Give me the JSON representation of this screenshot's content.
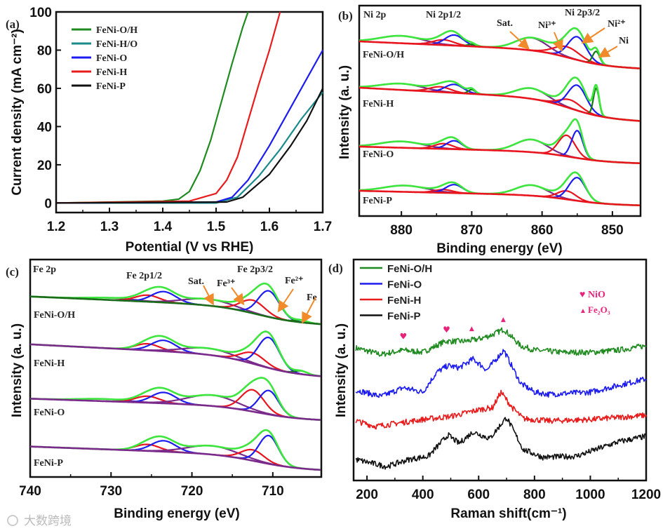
{
  "watermark": "大数跨境",
  "chart_data": [
    {
      "id": "a",
      "type": "line",
      "panel_label": "(a)",
      "xlabel": "Potential (V vs RHE)",
      "ylabel": "Current density (mA cm⁻²)",
      "xlim": [
        1.2,
        1.7
      ],
      "ylim": [
        -5,
        100
      ],
      "xticks": [
        1.2,
        1.3,
        1.4,
        1.5,
        1.6,
        1.7
      ],
      "yticks": [
        0,
        20,
        40,
        60,
        80,
        100
      ],
      "legend": "top-left",
      "series": [
        {
          "name": "FeNi-O/H",
          "color": "#1f8a1f",
          "x": [
            1.2,
            1.4,
            1.43,
            1.45,
            1.47,
            1.49,
            1.51,
            1.53,
            1.55,
            1.56
          ],
          "y": [
            0,
            1,
            2,
            6,
            17,
            33,
            53,
            73,
            92,
            100
          ]
        },
        {
          "name": "FeNi-H/O",
          "color": "#1a8a8a",
          "x": [
            1.2,
            1.5,
            1.54,
            1.58,
            1.62,
            1.66,
            1.7
          ],
          "y": [
            0,
            0,
            3,
            14,
            28,
            44,
            58
          ]
        },
        {
          "name": "FeNi-O",
          "color": "#1c1cf0",
          "x": [
            1.2,
            1.5,
            1.53,
            1.56,
            1.6,
            1.64,
            1.67,
            1.7
          ],
          "y": [
            0,
            0.5,
            3,
            12,
            30,
            50,
            65,
            80
          ]
        },
        {
          "name": "FeNi-H",
          "color": "#e81c1c",
          "x": [
            1.2,
            1.45,
            1.5,
            1.52,
            1.54,
            1.56,
            1.58,
            1.6,
            1.61,
            1.62
          ],
          "y": [
            0,
            1,
            5,
            12,
            24,
            43,
            62,
            80,
            90,
            100
          ]
        },
        {
          "name": "FeNi-P",
          "color": "#111111",
          "x": [
            1.2,
            1.52,
            1.55,
            1.6,
            1.64,
            1.67,
            1.7
          ],
          "y": [
            0,
            0.5,
            3,
            15,
            30,
            43,
            60
          ]
        }
      ]
    },
    {
      "id": "b",
      "type": "line",
      "panel_label": "(b)",
      "title": "Ni 2p",
      "xlabel": "Binding energy (eV)",
      "ylabel": "Intensity (a. u.)",
      "xlim": [
        886,
        846
      ],
      "ylim": [
        0,
        100
      ],
      "xticks": [
        880,
        870,
        860,
        850
      ],
      "step_center": 856,
      "annotations": [
        "Ni 2p1/2",
        "Sat.",
        "Ni³⁺",
        "Ni 2p3/2",
        "Ni²⁺",
        "Ni"
      ],
      "colors": {
        "baseline": "#e8141e",
        "envelope": "#3ce63c",
        "satellite": "#7a2a8a",
        "red": "#e8141e",
        "blue": "#1c1cf0",
        "metal": "#137a13"
      },
      "spectra": [
        {
          "name": "FeNi-O/H",
          "baseline": [
            83,
            70
          ],
          "peaks": [
            {
              "c": 880,
              "h": 3.5,
              "w": 3,
              "k": "satellite"
            },
            {
              "c": 874,
              "h": 2.5,
              "w": 1.5,
              "k": "red"
            },
            {
              "c": 872.5,
              "h": 5,
              "w": 1.3,
              "k": "blue"
            },
            {
              "c": 870,
              "h": 1,
              "w": 0.6,
              "k": "metal"
            },
            {
              "c": 861.5,
              "h": 6,
              "w": 2.2,
              "k": "satellite"
            },
            {
              "c": 856.5,
              "h": 5,
              "w": 1.8,
              "k": "red"
            },
            {
              "c": 855,
              "h": 11,
              "w": 1.3,
              "k": "blue"
            },
            {
              "c": 852.3,
              "h": 6,
              "w": 0.5,
              "k": "metal"
            }
          ]
        },
        {
          "name": "FeNi-H",
          "baseline": [
            61,
            45
          ],
          "peaks": [
            {
              "c": 880,
              "h": 3,
              "w": 3,
              "k": "satellite"
            },
            {
              "c": 874.5,
              "h": 2.5,
              "w": 1.5,
              "k": "red"
            },
            {
              "c": 872.5,
              "h": 4,
              "w": 1.3,
              "k": "blue"
            },
            {
              "c": 870,
              "h": 2,
              "w": 0.5,
              "k": "metal"
            },
            {
              "c": 861.5,
              "h": 5,
              "w": 2.2,
              "k": "satellite"
            },
            {
              "c": 856,
              "h": 4,
              "w": 1.5,
              "k": "red"
            },
            {
              "c": 855,
              "h": 12,
              "w": 1.3,
              "k": "blue"
            },
            {
              "c": 852.3,
              "h": 13,
              "w": 0.4,
              "k": "metal"
            }
          ]
        },
        {
          "name": "FeNi-O",
          "baseline": [
            33,
            25
          ],
          "peaks": [
            {
              "c": 880,
              "h": 3,
              "w": 3,
              "k": "satellite"
            },
            {
              "c": 874,
              "h": 2.5,
              "w": 1.3,
              "k": "red"
            },
            {
              "c": 872.5,
              "h": 4,
              "w": 1.1,
              "k": "blue"
            },
            {
              "c": 861.5,
              "h": 6,
              "w": 2.2,
              "k": "satellite"
            },
            {
              "c": 856.5,
              "h": 10,
              "w": 1.2,
              "k": "red"
            },
            {
              "c": 855,
              "h": 13,
              "w": 0.8,
              "k": "blue"
            }
          ]
        },
        {
          "name": "FeNi-P",
          "baseline": [
            12,
            5
          ],
          "peaks": [
            {
              "c": 879.5,
              "h": 3,
              "w": 3,
              "k": "satellite"
            },
            {
              "c": 874,
              "h": 1.5,
              "w": 1.3,
              "k": "red"
            },
            {
              "c": 872.5,
              "h": 4,
              "w": 1.2,
              "k": "blue"
            },
            {
              "c": 861.5,
              "h": 5,
              "w": 2.2,
              "k": "satellite"
            },
            {
              "c": 856.5,
              "h": 4,
              "w": 1.3,
              "k": "red"
            },
            {
              "c": 855,
              "h": 11,
              "w": 1.2,
              "k": "blue"
            }
          ]
        }
      ]
    },
    {
      "id": "c",
      "type": "line",
      "panel_label": "(c)",
      "title": "Fe 2p",
      "xlabel": "Binding energy (eV)",
      "ylabel": "Intensity (a. u.)",
      "xlim": [
        740,
        704
      ],
      "ylim": [
        0,
        100
      ],
      "xticks": [
        740,
        730,
        720,
        710
      ],
      "step_center": 712,
      "annotations": [
        "Fe 2p1/2",
        "Sat.",
        "Fe³⁺",
        "Fe 2p3/2",
        "Fe²⁺",
        "Fe"
      ],
      "colors": {
        "baseline_first": "#1a6b1a",
        "baseline": "#7a2a8a",
        "envelope": "#3ce63c",
        "satellite": "#7a2a8a",
        "red": "#e8141e",
        "blue": "#1c1cf0",
        "metal": "#137a13"
      },
      "spectra": [
        {
          "name": "FeNi-O/H",
          "baseline": [
            83,
            70
          ],
          "peaks": [
            {
              "c": 730,
              "h": 1,
              "w": 3,
              "k": "satellite"
            },
            {
              "c": 725.5,
              "h": 3,
              "w": 1.5,
              "k": "red"
            },
            {
              "c": 723.5,
              "h": 5,
              "w": 1.5,
              "k": "blue"
            },
            {
              "c": 718,
              "h": 3,
              "w": 3,
              "k": "satellite"
            },
            {
              "c": 712.5,
              "h": 6,
              "w": 1.5,
              "k": "red"
            },
            {
              "c": 710.5,
              "h": 12,
              "w": 1.3,
              "k": "blue"
            },
            {
              "c": 706.5,
              "h": 1,
              "w": 0.8,
              "k": "metal"
            }
          ]
        },
        {
          "name": "FeNi-H",
          "baseline": [
            61,
            46
          ],
          "peaks": [
            {
              "c": 725.5,
              "h": 3,
              "w": 1.5,
              "k": "red"
            },
            {
              "c": 723.5,
              "h": 5,
              "w": 1.5,
              "k": "blue"
            },
            {
              "c": 718,
              "h": 3,
              "w": 3,
              "k": "satellite"
            },
            {
              "c": 712.5,
              "h": 5,
              "w": 1.5,
              "k": "red"
            },
            {
              "c": 710.5,
              "h": 14,
              "w": 1.3,
              "k": "blue"
            },
            {
              "c": 706.5,
              "h": 1.5,
              "w": 0.8,
              "k": "metal"
            }
          ]
        },
        {
          "name": "FeNi-O",
          "baseline": [
            36,
            26
          ],
          "peaks": [
            {
              "c": 731,
              "h": 1,
              "w": 3,
              "k": "satellite"
            },
            {
              "c": 725.5,
              "h": 3,
              "w": 1.5,
              "k": "red"
            },
            {
              "c": 723.5,
              "h": 5,
              "w": 1.5,
              "k": "blue"
            },
            {
              "c": 717.5,
              "h": 5,
              "w": 3,
              "k": "satellite"
            },
            {
              "c": 712.5,
              "h": 10,
              "w": 1.4,
              "k": "red"
            },
            {
              "c": 710.5,
              "h": 11,
              "w": 1.2,
              "k": "blue"
            }
          ]
        },
        {
          "name": "FeNi-P",
          "baseline": [
            14,
            3
          ],
          "peaks": [
            {
              "c": 725.5,
              "h": 3,
              "w": 1.5,
              "k": "red"
            },
            {
              "c": 723.5,
              "h": 5,
              "w": 1.5,
              "k": "blue"
            },
            {
              "c": 717.5,
              "h": 4,
              "w": 3,
              "k": "satellite"
            },
            {
              "c": 712.5,
              "h": 5,
              "w": 1.4,
              "k": "red"
            },
            {
              "c": 710.5,
              "h": 13,
              "w": 1.2,
              "k": "blue"
            }
          ]
        }
      ]
    },
    {
      "id": "d",
      "type": "line",
      "panel_label": "(d)",
      "xlabel": "Raman shift(cm⁻¹)",
      "ylabel": "Intensity (a. u.)",
      "xlim": [
        152,
        1200
      ],
      "ylim": [
        0,
        100
      ],
      "xticks": [
        200,
        400,
        600,
        800,
        1000,
        1200
      ],
      "legend": "top-left",
      "markers": [
        {
          "label": "NiO",
          "symbol": "♥",
          "color": "#e8237a",
          "x": [
            330,
            485
          ],
          "y": [
            64,
            67
          ]
        },
        {
          "label": "Fe₂O₃",
          "symbol": "▲",
          "color": "#e8237a",
          "x": [
            575,
            688
          ],
          "y": [
            68,
            72
          ]
        }
      ],
      "series": [
        {
          "name": "FeNi-O/H",
          "color": "#1f8a1f",
          "x": [
            160,
            250,
            330,
            400,
            480,
            550,
            600,
            650,
            690,
            750,
            800,
            900,
            1000,
            1100,
            1200
          ],
          "y": [
            60,
            57,
            59,
            58,
            63,
            63,
            64,
            66,
            68.5,
            61,
            59,
            58,
            58,
            59,
            61
          ]
        },
        {
          "name": "FeNi-O",
          "color": "#1c1cf0",
          "x": [
            160,
            250,
            330,
            400,
            450,
            490,
            530,
            580,
            630,
            690,
            750,
            800,
            850,
            1000,
            1100,
            1200
          ],
          "y": [
            41,
            38,
            42,
            40,
            49,
            52,
            51,
            55,
            50,
            59,
            44,
            40,
            39,
            40,
            43,
            46
          ]
        },
        {
          "name": "FeNi-H",
          "color": "#e81c1c",
          "x": [
            160,
            230,
            400,
            500,
            600,
            650,
            680,
            720,
            760,
            850,
            1000,
            1200
          ],
          "y": [
            27,
            24.5,
            27.6,
            29,
            32,
            33,
            40,
            33,
            28,
            27,
            27.6,
            29.5
          ]
        },
        {
          "name": "FeNi-P",
          "color": "#111111",
          "x": [
            160,
            270,
            350,
            420,
            490,
            530,
            580,
            640,
            700,
            760,
            830,
            950,
            1100,
            1200
          ],
          "y": [
            9.5,
            6.3,
            9.5,
            11,
            20.6,
            16.8,
            22,
            19,
            28.6,
            14,
            10.5,
            11,
            17.5,
            20
          ]
        }
      ]
    }
  ]
}
